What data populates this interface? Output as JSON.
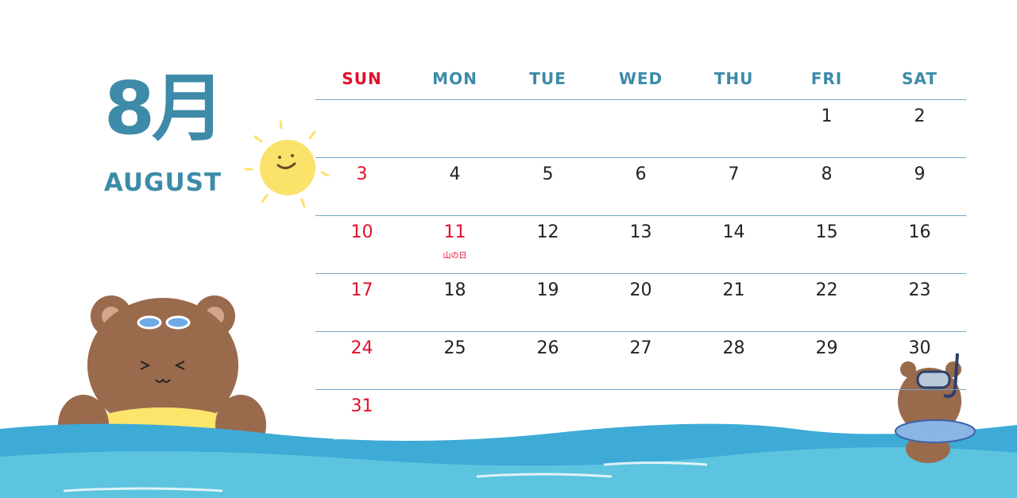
{
  "title": {
    "month_jp": "8月",
    "month_en": "AUGUST"
  },
  "weekdays": [
    "SUN",
    "MON",
    "TUE",
    "WED",
    "THU",
    "FRI",
    "SAT"
  ],
  "weeks": [
    [
      "",
      "",
      "",
      "",
      "",
      "1",
      "2"
    ],
    [
      "3",
      "4",
      "5",
      "6",
      "7",
      "8",
      "9"
    ],
    [
      "10",
      "11",
      "12",
      "13",
      "14",
      "15",
      "16"
    ],
    [
      "17",
      "18",
      "19",
      "20",
      "21",
      "22",
      "23"
    ],
    [
      "24",
      "25",
      "26",
      "27",
      "28",
      "29",
      "30"
    ],
    [
      "31",
      "",
      "",
      "",
      "",
      "",
      ""
    ]
  ],
  "holidays": {
    "11": "山の日"
  },
  "colors": {
    "accent": "#3d8ba8",
    "sunday": "#e0102a",
    "water": "#4fb3d9",
    "sun": "#fbe26a",
    "bear": "#9a6a4c"
  },
  "illustrations": [
    "sun-icon",
    "bear-swim-ring-icon",
    "bear-snorkel-icon",
    "sea-waves"
  ]
}
